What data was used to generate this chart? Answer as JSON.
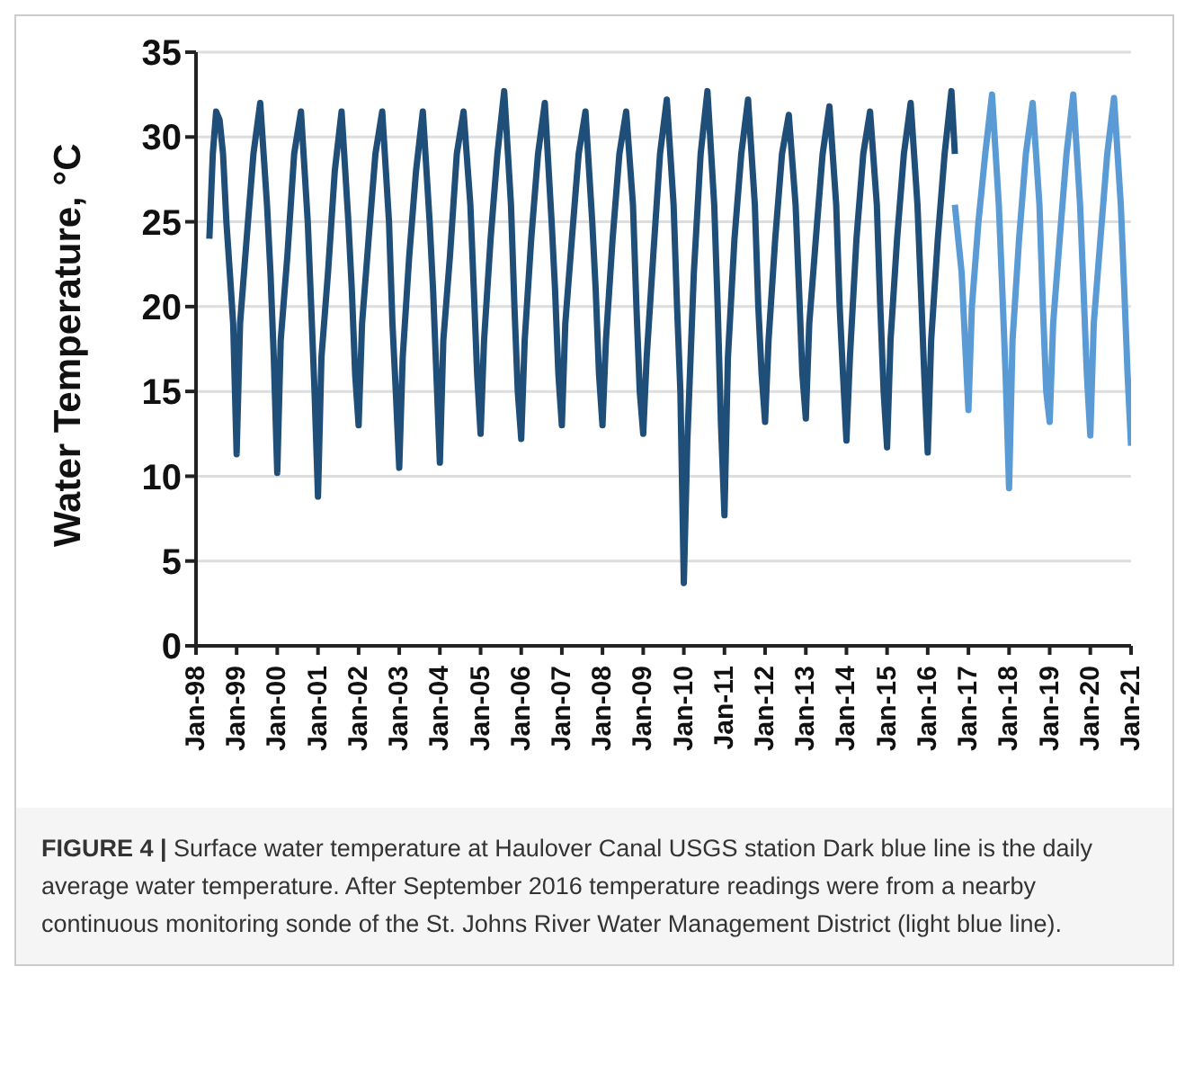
{
  "chart_data": {
    "type": "line",
    "ylabel": "Water Temperature, °C",
    "xlim": [
      "1998-01",
      "2021-01"
    ],
    "xticks": [
      {
        "value": "1998-01",
        "label": "Jan-98"
      },
      {
        "value": "1999-01",
        "label": "Jan-99"
      },
      {
        "value": "2000-01",
        "label": "Jan-00"
      },
      {
        "value": "2001-01",
        "label": "Jan-01"
      },
      {
        "value": "2002-01",
        "label": "Jan-02"
      },
      {
        "value": "2003-01",
        "label": "Jan-03"
      },
      {
        "value": "2004-01",
        "label": "Jan-04"
      },
      {
        "value": "2005-01",
        "label": "Jan-05"
      },
      {
        "value": "2006-01",
        "label": "Jan-06"
      },
      {
        "value": "2007-01",
        "label": "Jan-07"
      },
      {
        "value": "2008-01",
        "label": "Jan-08"
      },
      {
        "value": "2009-01",
        "label": "Jan-09"
      },
      {
        "value": "2010-01",
        "label": "Jan-10"
      },
      {
        "value": "2011-01",
        "label": "Jan-11"
      },
      {
        "value": "2012-01",
        "label": "Jan-12"
      },
      {
        "value": "2013-01",
        "label": "Jan-13"
      },
      {
        "value": "2014-01",
        "label": "Jan-14"
      },
      {
        "value": "2015-01",
        "label": "Jan-15"
      },
      {
        "value": "2016-01",
        "label": "Jan-16"
      },
      {
        "value": "2017-01",
        "label": "Jan-17"
      },
      {
        "value": "2018-01",
        "label": "Jan-18"
      },
      {
        "value": "2019-01",
        "label": "Jan-19"
      },
      {
        "value": "2020-01",
        "label": "Jan-20"
      },
      {
        "value": "2021-01",
        "label": "Jan-21"
      }
    ],
    "ylim": [
      0,
      35
    ],
    "yticks": [
      0,
      5,
      10,
      15,
      20,
      25,
      30,
      35
    ],
    "grid": "y",
    "legend": false,
    "marker": "none",
    "line_style": "solid",
    "annotations": [
      "FIGURE 4 | Surface water temperature at Haulover Canal USGS station Dark blue line is the daily average water temperature. After September 2016 temperature readings were from a nearby continuous monitoring sonde of the St. Johns River Water Management District (light blue line)."
    ],
    "series": [
      {
        "color": "#1f4e79",
        "x": [
          "1998-05",
          "1998-06",
          "1998-07",
          "1998-08",
          "1998-09",
          "1998-10",
          "1998-11",
          "1998-12",
          "1999-01",
          "1999-02",
          "1999-04",
          "1999-06",
          "1999-08",
          "1999-10",
          "1999-11",
          "1999-12",
          "2000-01",
          "2000-02",
          "2000-04",
          "2000-06",
          "2000-08",
          "2000-10",
          "2000-11",
          "2000-12",
          "2001-01",
          "2001-02",
          "2001-04",
          "2001-06",
          "2001-08",
          "2001-10",
          "2001-11",
          "2001-12",
          "2002-01",
          "2002-02",
          "2002-04",
          "2002-06",
          "2002-08",
          "2002-10",
          "2002-11",
          "2002-12",
          "2003-01",
          "2003-02",
          "2003-04",
          "2003-06",
          "2003-08",
          "2003-10",
          "2003-11",
          "2003-12",
          "2004-01",
          "2004-02",
          "2004-04",
          "2004-06",
          "2004-08",
          "2004-10",
          "2004-11",
          "2004-12",
          "2005-01",
          "2005-02",
          "2005-04",
          "2005-06",
          "2005-08",
          "2005-10",
          "2005-11",
          "2005-12",
          "2006-01",
          "2006-02",
          "2006-04",
          "2006-06",
          "2006-08",
          "2006-10",
          "2006-11",
          "2006-12",
          "2007-01",
          "2007-02",
          "2007-04",
          "2007-06",
          "2007-08",
          "2007-10",
          "2007-11",
          "2007-12",
          "2008-01",
          "2008-02",
          "2008-04",
          "2008-06",
          "2008-08",
          "2008-10",
          "2008-11",
          "2008-12",
          "2009-01",
          "2009-02",
          "2009-04",
          "2009-06",
          "2009-08",
          "2009-10",
          "2009-11",
          "2009-12",
          "2010-01",
          "2010-02",
          "2010-04",
          "2010-06",
          "2010-08",
          "2010-10",
          "2010-11",
          "2010-12",
          "2011-01",
          "2011-02",
          "2011-04",
          "2011-06",
          "2011-08",
          "2011-10",
          "2011-11",
          "2011-12",
          "2012-01",
          "2012-02",
          "2012-04",
          "2012-06",
          "2012-08",
          "2012-10",
          "2012-11",
          "2012-12",
          "2013-01",
          "2013-02",
          "2013-04",
          "2013-06",
          "2013-08",
          "2013-10",
          "2013-11",
          "2013-12",
          "2014-01",
          "2014-02",
          "2014-04",
          "2014-06",
          "2014-08",
          "2014-10",
          "2014-11",
          "2014-12",
          "2015-01",
          "2015-02",
          "2015-04",
          "2015-06",
          "2015-08",
          "2015-10",
          "2015-11",
          "2015-12",
          "2016-01",
          "2016-02",
          "2016-04",
          "2016-06",
          "2016-08",
          "2016-09"
        ],
        "values": [
          24,
          29,
          31.5,
          31,
          29,
          25,
          22,
          19,
          11.3,
          19,
          24,
          29,
          32,
          26,
          22,
          17,
          10.2,
          18,
          23,
          29,
          31.5,
          25,
          20,
          15,
          8.8,
          17,
          22,
          28,
          31.5,
          25,
          21,
          16,
          13,
          19,
          24,
          29,
          31.5,
          25,
          19,
          15,
          10.5,
          17,
          23,
          28,
          31.5,
          25,
          21,
          16,
          10.8,
          18,
          23,
          29,
          31.5,
          26,
          21,
          16,
          12.5,
          18,
          24,
          29,
          32.7,
          26,
          20,
          15,
          12.2,
          18,
          24,
          29,
          32,
          25,
          21,
          16,
          13,
          19,
          24,
          29,
          31.5,
          25,
          21,
          16,
          13,
          18,
          24,
          29,
          31.5,
          26,
          20,
          15,
          12.5,
          17,
          23,
          29,
          32.2,
          26,
          20,
          15,
          3.7,
          12,
          22,
          29,
          32.7,
          26,
          20,
          13,
          7.7,
          17,
          24,
          29,
          32.2,
          26,
          20,
          16,
          13.2,
          18,
          24,
          29,
          31.3,
          26,
          21,
          16,
          13.4,
          19,
          24,
          29,
          31.8,
          26,
          20,
          16,
          12.1,
          17,
          24,
          29,
          31.5,
          26,
          20,
          15,
          11.7,
          18,
          24,
          29,
          32,
          26,
          21,
          16,
          11.4,
          18,
          24,
          29,
          32.7,
          29
        ]
      },
      {
        "color": "#5b9bd5",
        "x": [
          "2016-09",
          "2016-10",
          "2016-11",
          "2016-12",
          "2017-01",
          "2017-02",
          "2017-04",
          "2017-06",
          "2017-08",
          "2017-10",
          "2017-11",
          "2017-12",
          "2018-01",
          "2018-02",
          "2018-04",
          "2018-06",
          "2018-08",
          "2018-10",
          "2018-11",
          "2018-12",
          "2019-01",
          "2019-02",
          "2019-04",
          "2019-06",
          "2019-08",
          "2019-10",
          "2019-11",
          "2019-12",
          "2020-01",
          "2020-02",
          "2020-04",
          "2020-06",
          "2020-08",
          "2020-10",
          "2020-11",
          "2020-12",
          "2021-01"
        ],
        "values": [
          26,
          24,
          22,
          18,
          13.9,
          20,
          25,
          29,
          32.5,
          26,
          21,
          16,
          9.3,
          18,
          24,
          29,
          32,
          26,
          20,
          15,
          13.2,
          19,
          24,
          29,
          32.5,
          26,
          21,
          16,
          12.4,
          19,
          24,
          29,
          32.3,
          26,
          21,
          16,
          11.8
        ]
      }
    ]
  }
}
